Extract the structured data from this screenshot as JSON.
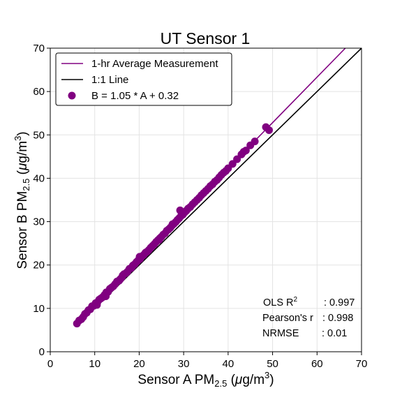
{
  "chart_data": {
    "type": "scatter",
    "title": "UT Sensor 1",
    "xlabel": {
      "prefix": "Sensor A PM",
      "sub": "2.5",
      "unit_open": " (",
      "mu": "μ",
      "unit_mid": "g/m",
      "sup": "3",
      "unit_close": ")"
    },
    "ylabel": {
      "prefix": "Sensor B PM",
      "sub": "2.5",
      "unit_open": " (",
      "mu": "μ",
      "unit_mid": "g/m",
      "sup": "3",
      "unit_close": ")"
    },
    "xlim": [
      0,
      70
    ],
    "ylim": [
      0,
      70
    ],
    "xticks": [
      "0",
      "10",
      "20",
      "30",
      "40",
      "50",
      "60",
      "70"
    ],
    "yticks": [
      "0",
      "10",
      "20",
      "30",
      "40",
      "50",
      "60",
      "70"
    ],
    "grid": true,
    "legend_position": "top-left",
    "legend": [
      {
        "label": "1-hr Average Measurement",
        "kind": "line",
        "color": "#800080"
      },
      {
        "label": "1:1 Line",
        "kind": "line",
        "color": "#000000"
      },
      {
        "label": "B = 1.05 * A + 0.32",
        "kind": "marker",
        "color": "#800080"
      }
    ],
    "fit": {
      "slope": 1.05,
      "intercept": 0.32,
      "color": "#800080"
    },
    "identity_color": "#000000",
    "marker_color": "#800080",
    "points": {
      "x": [
        6.0,
        6.5,
        7.0,
        7.4,
        7.8,
        8.2,
        8.6,
        9.0,
        9.4,
        9.8,
        10.2,
        10.6,
        11.0,
        11.4,
        11.8,
        12.2,
        12.6,
        13.0,
        13.4,
        13.8,
        14.2,
        14.6,
        15.0,
        15.4,
        15.8,
        16.2,
        16.6,
        17.0,
        17.4,
        17.8,
        18.2,
        18.6,
        19.0,
        19.4,
        19.8,
        20.2,
        20.6,
        21.0,
        21.4,
        21.8,
        22.2,
        22.6,
        23.0,
        23.4,
        23.8,
        24.2,
        24.6,
        25.0,
        25.4,
        25.8,
        26.2,
        26.6,
        27.0,
        27.4,
        27.8,
        28.2,
        28.6,
        29.0,
        29.4,
        29.8,
        30.2,
        30.6,
        31.0,
        31.5,
        32.0,
        32.5,
        33.0,
        33.5,
        34.0,
        34.5,
        35.0,
        35.5,
        36.0,
        36.5,
        37.0,
        37.5,
        38.0,
        38.5,
        39.0,
        39.5,
        40.0,
        41.0,
        42.0,
        43.0,
        43.5,
        44.0,
        45.0,
        46.0,
        48.5,
        49.2,
        10.5,
        12.5,
        15.5,
        18.5,
        21.5,
        24.5,
        27.5,
        29.2,
        16.3,
        20.1
      ],
      "y": [
        6.5,
        7.2,
        7.5,
        8.0,
        8.7,
        9.0,
        9.6,
        9.8,
        10.5,
        10.6,
        11.2,
        11.4,
        12.0,
        12.3,
        12.6,
        13.1,
        13.7,
        13.8,
        14.5,
        14.8,
        15.1,
        15.6,
        16.2,
        16.4,
        16.8,
        17.3,
        17.9,
        18.1,
        18.5,
        19.1,
        19.3,
        19.9,
        20.2,
        20.7,
        21.1,
        21.4,
        22.0,
        22.3,
        22.8,
        23.1,
        23.5,
        24.0,
        24.4,
        24.8,
        25.3,
        25.7,
        26.1,
        26.5,
        27.0,
        27.3,
        27.9,
        28.2,
        28.6,
        29.1,
        29.5,
        29.9,
        30.4,
        30.8,
        31.3,
        31.6,
        32.1,
        32.5,
        33.0,
        33.4,
        34.0,
        34.5,
        35.0,
        35.5,
        36.1,
        36.6,
        37.1,
        37.6,
        38.2,
        38.6,
        39.2,
        39.6,
        40.2,
        40.8,
        41.3,
        41.7,
        42.3,
        43.3,
        44.4,
        45.5,
        46.1,
        46.4,
        47.6,
        48.5,
        51.8,
        51.1,
        10.8,
        12.8,
        16.4,
        19.7,
        22.9,
        25.8,
        29.4,
        32.6,
        17.6,
        21.9
      ]
    }
  },
  "stats": [
    {
      "label_main": "OLS R",
      "label_sup": "2",
      "value": ": 0.997"
    },
    {
      "label_main": "Pearson's r",
      "label_sup": "",
      "value": ": 0.998"
    },
    {
      "label_main": "NRMSE",
      "label_sup": "",
      "value": ": 0.01"
    }
  ]
}
